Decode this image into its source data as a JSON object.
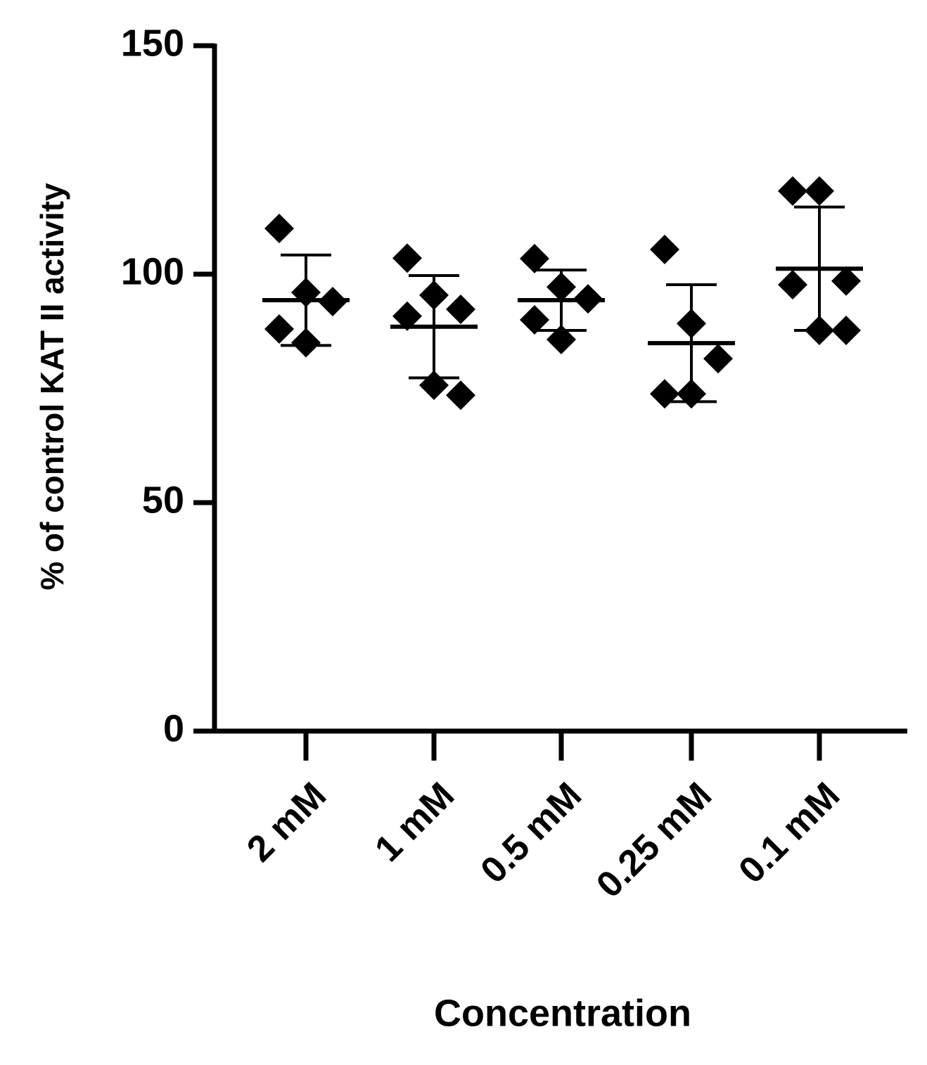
{
  "chart_data": {
    "type": "dot",
    "x_label": "Concentration",
    "y_label": "% of control KAT II activity",
    "categories": [
      "2 mM",
      "1 mM",
      "0.5 mM",
      "0.25 mM",
      "0.1 mM"
    ],
    "points": [
      [
        110,
        96,
        94,
        88,
        85
      ],
      [
        103.5,
        95.4,
        92.3,
        90.8,
        75.7,
        73.5
      ],
      [
        103.4,
        97.2,
        94.6,
        90,
        85.7
      ],
      [
        105.4,
        89.2,
        81.5,
        73.8,
        73.8
      ],
      [
        118.2,
        118.2,
        98.5,
        97.7,
        87.7,
        87.7
      ]
    ],
    "mean": [
      94.3,
      88.5,
      94.3,
      84.9,
      101.2
    ],
    "sd": [
      9.9,
      11.2,
      6.6,
      12.8,
      13.5
    ],
    "color": "#000000",
    "ylim": [
      0,
      150
    ],
    "yticks": [
      0,
      50,
      100,
      150
    ]
  }
}
